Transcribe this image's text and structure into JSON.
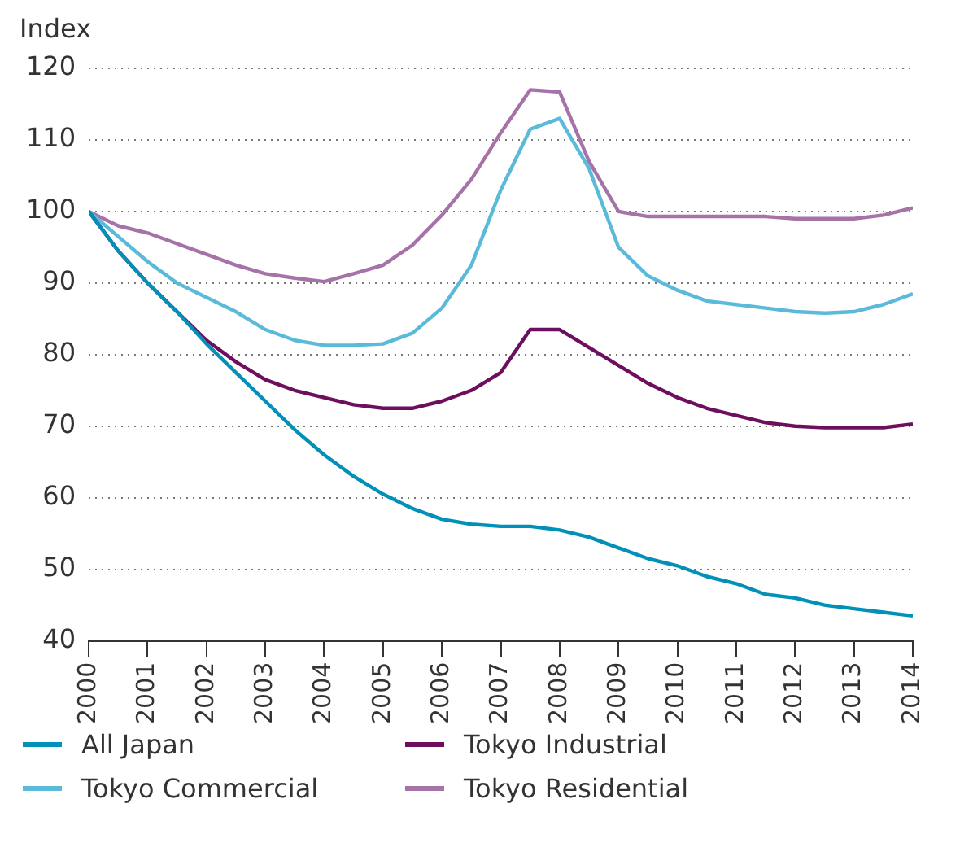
{
  "chart_data": {
    "type": "line",
    "ylabel": "Index",
    "x": [
      2000,
      2000.5,
      2001,
      2001.5,
      2002,
      2002.5,
      2003,
      2003.5,
      2004,
      2004.5,
      2005,
      2005.5,
      2006,
      2006.5,
      2007,
      2007.5,
      2008,
      2008.5,
      2009,
      2009.5,
      2010,
      2010.5,
      2011,
      2011.5,
      2012,
      2012.5,
      2013,
      2013.5,
      2014
    ],
    "series": [
      {
        "name": "All Japan",
        "color": "#0090b8",
        "values": [
          100,
          94.5,
          90,
          86,
          81.5,
          77.5,
          73.5,
          69.5,
          66,
          63,
          60.5,
          58.5,
          57,
          56.3,
          56,
          56,
          55.5,
          54.5,
          53,
          51.5,
          50.5,
          49,
          48,
          46.5,
          46,
          45,
          44.5,
          44,
          43.5
        ]
      },
      {
        "name": "Tokyo Industrial",
        "color": "#6d0f5e",
        "values": [
          100,
          94.5,
          90,
          86,
          82,
          79,
          76.5,
          75,
          74,
          73,
          72.5,
          72.5,
          73.5,
          75,
          77.5,
          83.5,
          83.5,
          81,
          78.5,
          76,
          74,
          72.5,
          71.5,
          70.5,
          70,
          69.8,
          69.8,
          69.8,
          70.3
        ]
      },
      {
        "name": "Tokyo Commercial",
        "color": "#5bbad9",
        "values": [
          100,
          96.5,
          93,
          90,
          88,
          86,
          83.5,
          82,
          81.3,
          81.3,
          81.5,
          83,
          86.5,
          92.5,
          103,
          111.5,
          113,
          106,
          95,
          91,
          89,
          87.5,
          87,
          86.5,
          86,
          85.8,
          86,
          87,
          88.5
        ]
      },
      {
        "name": "Tokyo Residential",
        "color": "#a673a8",
        "values": [
          100,
          98,
          97,
          95.5,
          94,
          92.5,
          91.3,
          90.7,
          90.2,
          91.3,
          92.5,
          95.3,
          99.5,
          104.5,
          111,
          117,
          116.7,
          107,
          100,
          99.3,
          99.3,
          99.3,
          99.3,
          99.3,
          99,
          99,
          99,
          99.5,
          100.5
        ]
      }
    ],
    "xlim": [
      2000,
      2014
    ],
    "xticks": [
      2000,
      2001,
      2002,
      2003,
      2004,
      2005,
      2006,
      2007,
      2008,
      2009,
      2010,
      2011,
      2012,
      2013,
      2014
    ],
    "ylim": [
      40,
      120
    ],
    "yticks": [
      40,
      50,
      60,
      70,
      80,
      90,
      100,
      110,
      120
    ],
    "grid": "y",
    "legend": "bottom",
    "marker": "none",
    "line_style": "solid"
  }
}
